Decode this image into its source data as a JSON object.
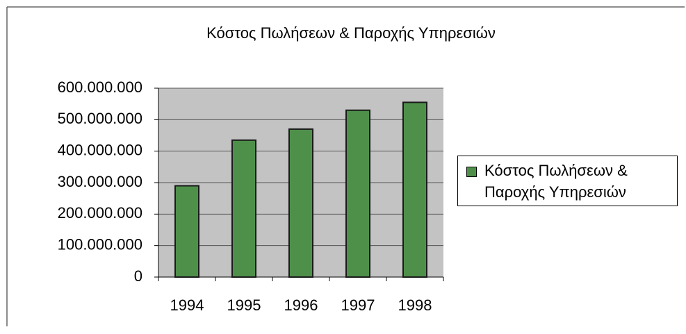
{
  "chart_data": {
    "type": "bar",
    "title": "Κόστος Πωλήσεων & Παροχής Υπηρεσιών",
    "categories": [
      "1994",
      "1995",
      "1996",
      "1997",
      "1998"
    ],
    "series": [
      {
        "name": "Κόστος Πωλήσεων & Παροχής Υπηρεσιών",
        "color": "#4e8f4a",
        "values": [
          290000000,
          435000000,
          470000000,
          530000000,
          555000000
        ]
      }
    ],
    "ylim": [
      0,
      600000000
    ],
    "yticks": [
      {
        "value": 0,
        "label": "0"
      },
      {
        "value": 100000000,
        "label": "100.000.000"
      },
      {
        "value": 200000000,
        "label": "200.000.000"
      },
      {
        "value": 300000000,
        "label": "300.000.000"
      },
      {
        "value": 400000000,
        "label": "400.000.000"
      },
      {
        "value": 500000000,
        "label": "500.000.000"
      },
      {
        "value": 600000000,
        "label": "600.000.000"
      }
    ],
    "grid": true,
    "legend": "right"
  }
}
